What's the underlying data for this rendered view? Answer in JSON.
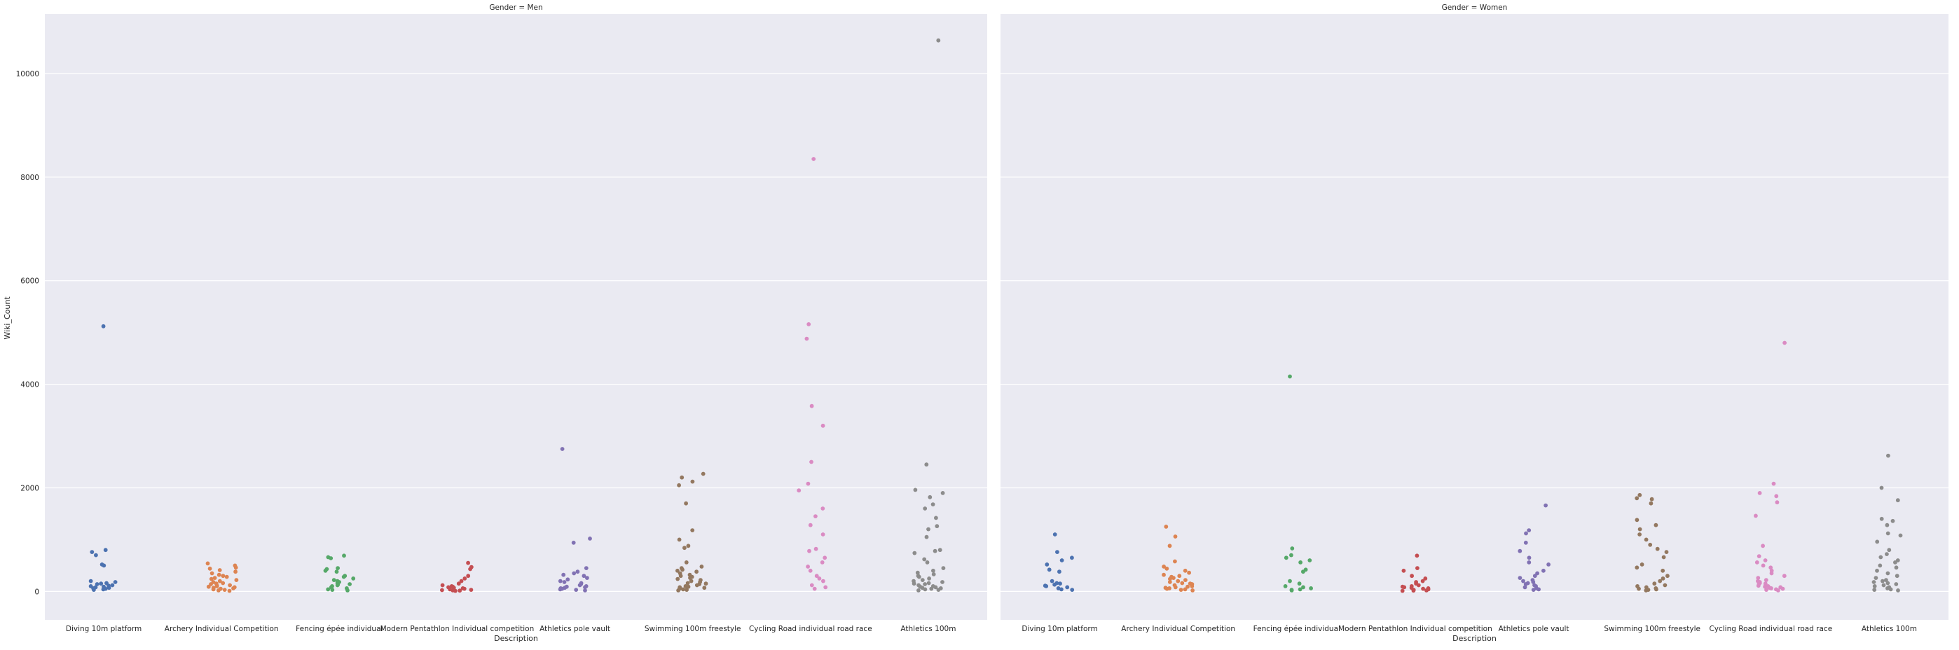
{
  "chart_data": {
    "type": "scatter",
    "subtype": "stripplot",
    "ylabel": "Wiki_Count",
    "xlabel": "Description",
    "ylim": [
      -550,
      11150
    ],
    "yticks": [
      0,
      2000,
      4000,
      6000,
      8000,
      10000
    ],
    "grid": true,
    "categories": [
      "Diving 10m platform",
      "Archery Individual Competition",
      "Fencing épée individual",
      "Modern Pentathlon Individual competition",
      "Athletics pole vault",
      "Swimming 100m freestyle",
      "Cycling Road individual road race",
      "Athletics 100m"
    ],
    "colors": [
      "#4c72b0",
      "#dd8452",
      "#55a868",
      "#c44e52",
      "#8172b3",
      "#937860",
      "#da8bc3",
      "#8c8c8c"
    ],
    "panels": [
      {
        "title": "Gender = Men",
        "series": [
          {
            "category": "Diving 10m platform",
            "values": [
              5120,
              800,
              760,
              700,
              520,
              500,
              200,
              180,
              160,
              150,
              140,
              120,
              110,
              100,
              90,
              80,
              70,
              60,
              50,
              40,
              30
            ]
          },
          {
            "category": "Archery Individual Competition",
            "values": [
              540,
              500,
              460,
              440,
              410,
              380,
              350,
              320,
              300,
              280,
              260,
              240,
              220,
              200,
              180,
              160,
              150,
              140,
              120,
              110,
              100,
              90,
              80,
              70,
              60,
              50,
              40,
              30,
              20,
              10
            ]
          },
          {
            "category": "Fencing épée individual",
            "values": [
              690,
              660,
              640,
              450,
              430,
              400,
              380,
              300,
              280,
              250,
              220,
              200,
              180,
              160,
              140,
              130,
              120,
              100,
              80,
              60,
              40,
              30,
              20
            ]
          },
          {
            "category": "Modern Pentathlon Individual competition",
            "values": [
              550,
              470,
              430,
              300,
              250,
              200,
              150,
              120,
              100,
              90,
              80,
              70,
              60,
              50,
              40,
              30,
              25,
              20,
              15,
              10
            ]
          },
          {
            "category": "Athletics pole vault",
            "values": [
              2750,
              1020,
              940,
              450,
              380,
              350,
              320,
              300,
              260,
              230,
              200,
              180,
              160,
              140,
              120,
              100,
              90,
              80,
              70,
              60,
              50,
              40,
              30,
              20
            ]
          },
          {
            "category": "Swimming 100m freestyle",
            "values": [
              2270,
              2200,
              2120,
              2050,
              1700,
              1180,
              1000,
              880,
              840,
              560,
              480,
              450,
              420,
              400,
              380,
              350,
              320,
              300,
              280,
              260,
              240,
              220,
              200,
              180,
              160,
              150,
              140,
              120,
              100,
              90,
              80,
              70,
              60,
              50,
              40,
              30,
              20
            ]
          },
          {
            "category": "Cycling Road individual road race",
            "values": [
              8350,
              5160,
              4880,
              3580,
              3200,
              2500,
              2080,
              1950,
              1600,
              1450,
              1280,
              1100,
              820,
              780,
              650,
              560,
              480,
              400,
              300,
              250,
              200,
              120,
              80,
              50
            ]
          },
          {
            "category": "Athletics 100m",
            "values": [
              10640,
              2450,
              1960,
              1900,
              1820,
              1680,
              1600,
              1420,
              1260,
              1200,
              1050,
              800,
              780,
              740,
              620,
              560,
              450,
              400,
              360,
              330,
              300,
              280,
              250,
              220,
              200,
              180,
              160,
              150,
              140,
              120,
              100,
              90,
              80,
              70,
              60,
              50,
              40,
              30,
              20
            ]
          }
        ]
      },
      {
        "title": "Gender = Women",
        "series": [
          {
            "category": "Diving 10m platform",
            "values": [
              1100,
              760,
              650,
              600,
              520,
              420,
              380,
              200,
              160,
              150,
              130,
              110,
              100,
              80,
              60,
              40,
              30
            ]
          },
          {
            "category": "Archery Individual Competition",
            "values": [
              1250,
              1060,
              880,
              580,
              480,
              440,
              400,
              360,
              320,
              300,
              280,
              260,
              240,
              220,
              200,
              180,
              160,
              150,
              140,
              120,
              100,
              90,
              80,
              70,
              60,
              50,
              40,
              30,
              20
            ]
          },
          {
            "category": "Fencing épée individual",
            "values": [
              4150,
              830,
              700,
              650,
              600,
              560,
              420,
              380,
              200,
              150,
              100,
              80,
              60,
              40,
              30,
              20
            ]
          },
          {
            "category": "Modern Pentathlon Individual competition",
            "values": [
              690,
              450,
              400,
              300,
              250,
              200,
              180,
              150,
              120,
              100,
              90,
              80,
              70,
              60,
              50,
              40,
              30,
              20,
              15,
              10
            ]
          },
          {
            "category": "Athletics pole vault",
            "values": [
              1660,
              1180,
              1120,
              940,
              780,
              650,
              560,
              520,
              400,
              350,
              300,
              260,
              220,
              200,
              180,
              160,
              140,
              120,
              100,
              80,
              60,
              40,
              30
            ]
          },
          {
            "category": "Swimming 100m freestyle",
            "values": [
              1860,
              1800,
              1780,
              1700,
              1380,
              1280,
              1200,
              1100,
              1000,
              900,
              820,
              760,
              660,
              520,
              460,
              400,
              300,
              250,
              200,
              150,
              120,
              100,
              80,
              60,
              50,
              40,
              30,
              20
            ]
          },
          {
            "category": "Cycling Road individual road race",
            "values": [
              4800,
              2080,
              1900,
              1840,
              1720,
              1460,
              880,
              680,
              600,
              560,
              500,
              460,
              400,
              350,
              300,
              260,
              220,
              200,
              180,
              160,
              150,
              140,
              120,
              110,
              100,
              90,
              80,
              70,
              60,
              50,
              40,
              30,
              20
            ]
          },
          {
            "category": "Athletics 100m",
            "values": [
              2620,
              2000,
              1760,
              1400,
              1360,
              1280,
              1120,
              1080,
              960,
              800,
              720,
              660,
              600,
              560,
              500,
              460,
              400,
              350,
              300,
              260,
              220,
              200,
              180,
              160,
              140,
              120,
              100,
              80,
              60,
              40,
              30,
              20
            ]
          }
        ]
      }
    ]
  }
}
